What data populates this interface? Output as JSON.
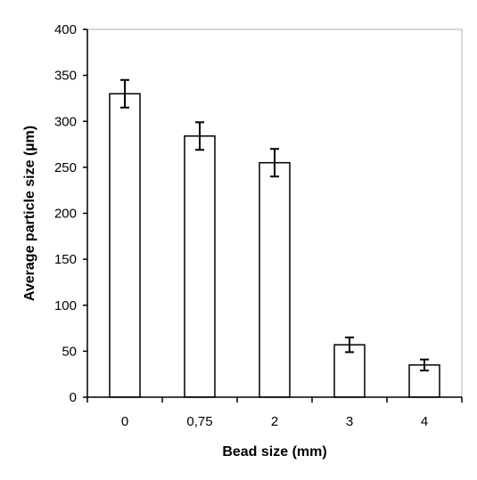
{
  "chart_data": {
    "type": "bar",
    "title": "",
    "xlabel": "Bead size (mm)",
    "ylabel": "Average particle size (µm)",
    "categories": [
      "0",
      "0,75",
      "2",
      "3",
      "4"
    ],
    "values": [
      330,
      284,
      255,
      57,
      35
    ],
    "error": [
      15,
      15,
      15,
      8,
      6
    ],
    "ylim": [
      0,
      400
    ],
    "yticks": [
      "0",
      "50",
      "100",
      "150",
      "200",
      "250",
      "300",
      "350",
      "400"
    ],
    "grid": false,
    "legend": "none",
    "bar_fill": "#ffffff",
    "bar_stroke": "#000000",
    "plot_border": "#b0b0b0"
  }
}
